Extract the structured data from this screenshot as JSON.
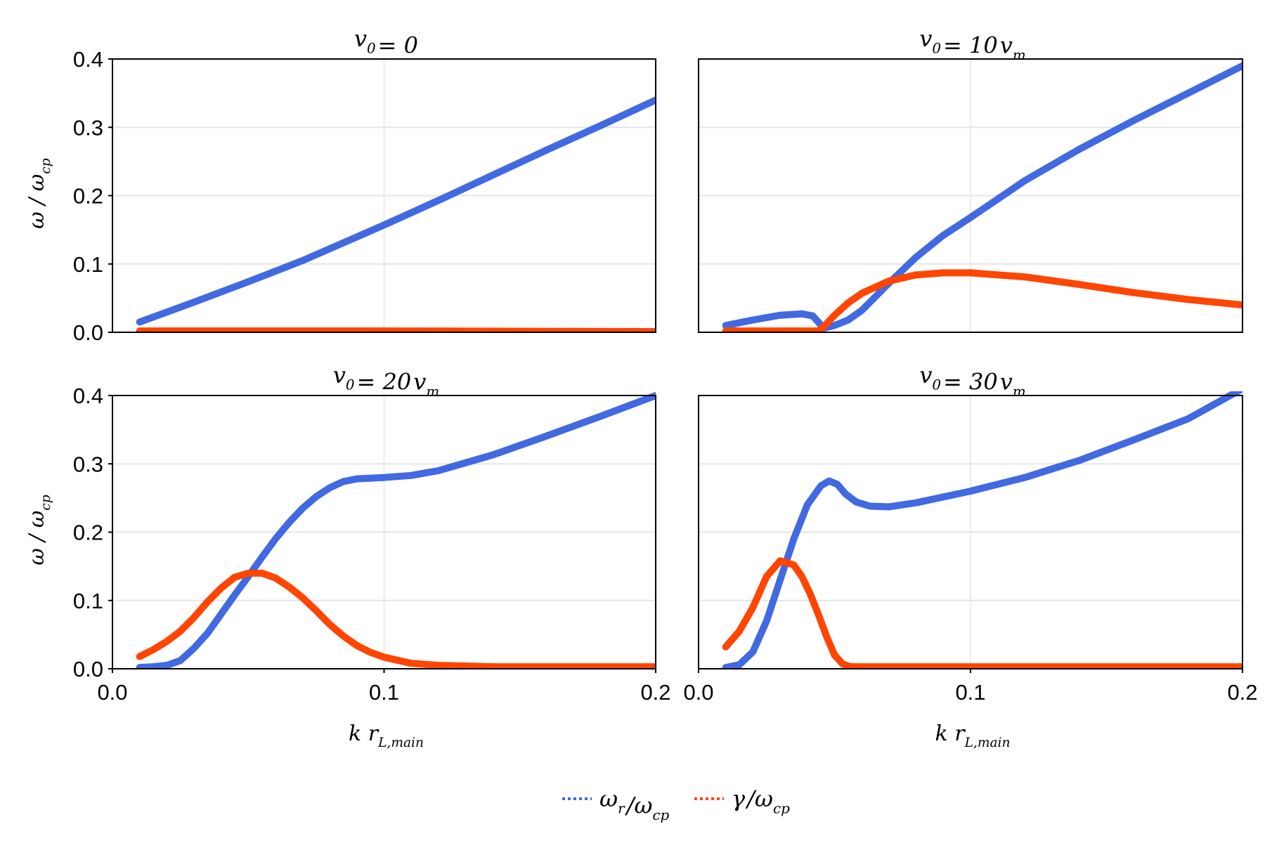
{
  "chart_data": [
    {
      "type": "scatter",
      "title": {
        "var": "v",
        "sub": "0",
        "rest": "= 0",
        "var2": "",
        "sub2": ""
      },
      "xlim": [
        0,
        0.2
      ],
      "ylim": [
        0,
        0.4
      ],
      "xticks": [
        "0.0",
        "0.1",
        "0.2"
      ],
      "yticks": [
        "0.0",
        "0.1",
        "0.2",
        "0.3",
        "0.4"
      ],
      "show_xticks": false,
      "show_yticks": true,
      "grid": true,
      "series": [
        {
          "key": "omega_r",
          "x": [
            0.01,
            0.03,
            0.05,
            0.07,
            0.1,
            0.12,
            0.14,
            0.16,
            0.18,
            0.2
          ],
          "y": [
            0.015,
            0.044,
            0.074,
            0.105,
            0.157,
            0.193,
            0.23,
            0.267,
            0.303,
            0.34
          ]
        },
        {
          "key": "gamma",
          "x": [
            0.01,
            0.1,
            0.2
          ],
          "y": [
            0.002,
            0.002,
            0.001
          ]
        }
      ]
    },
    {
      "type": "scatter",
      "title": {
        "var": "v",
        "sub": "0",
        "rest": "= 10",
        "var2": "v",
        "sub2": "m"
      },
      "xlim": [
        0,
        0.2
      ],
      "ylim": [
        0,
        0.4
      ],
      "xticks": [
        "0.0",
        "0.1",
        "0.2"
      ],
      "yticks": [
        "0.0",
        "0.1",
        "0.2",
        "0.3",
        "0.4"
      ],
      "show_xticks": false,
      "show_yticks": false,
      "grid": true,
      "series": [
        {
          "key": "omega_r",
          "x": [
            0.01,
            0.02,
            0.03,
            0.038,
            0.042,
            0.044,
            0.046,
            0.05,
            0.055,
            0.06,
            0.07,
            0.08,
            0.09,
            0.1,
            0.12,
            0.14,
            0.16,
            0.18,
            0.2
          ],
          "y": [
            0.01,
            0.018,
            0.025,
            0.027,
            0.024,
            0.015,
            0.006,
            0.01,
            0.018,
            0.032,
            0.072,
            0.11,
            0.142,
            0.168,
            0.222,
            0.268,
            0.31,
            0.35,
            0.39
          ]
        },
        {
          "key": "gamma",
          "x": [
            0.01,
            0.03,
            0.044,
            0.046,
            0.05,
            0.055,
            0.06,
            0.07,
            0.08,
            0.09,
            0.1,
            0.12,
            0.14,
            0.16,
            0.18,
            0.2
          ],
          "y": [
            0.002,
            0.002,
            0.002,
            0.008,
            0.025,
            0.043,
            0.057,
            0.075,
            0.084,
            0.087,
            0.087,
            0.081,
            0.07,
            0.058,
            0.048,
            0.04
          ]
        }
      ]
    },
    {
      "type": "scatter",
      "title": {
        "var": "v",
        "sub": "0",
        "rest": "= 20",
        "var2": "v",
        "sub2": "m"
      },
      "xlim": [
        0,
        0.2
      ],
      "ylim": [
        0,
        0.4
      ],
      "xticks": [
        "0.0",
        "0.1",
        "0.2"
      ],
      "yticks": [
        "0.0",
        "0.1",
        "0.2",
        "0.3",
        "0.4"
      ],
      "show_xticks": true,
      "show_yticks": true,
      "grid": true,
      "series": [
        {
          "key": "omega_r",
          "x": [
            0.01,
            0.015,
            0.02,
            0.025,
            0.03,
            0.035,
            0.04,
            0.045,
            0.05,
            0.055,
            0.06,
            0.065,
            0.07,
            0.075,
            0.08,
            0.085,
            0.09,
            0.1,
            0.11,
            0.12,
            0.14,
            0.16,
            0.18,
            0.2
          ],
          "y": [
            0.002,
            0.003,
            0.005,
            0.012,
            0.03,
            0.052,
            0.08,
            0.108,
            0.135,
            0.163,
            0.19,
            0.214,
            0.235,
            0.252,
            0.265,
            0.274,
            0.278,
            0.28,
            0.283,
            0.29,
            0.313,
            0.341,
            0.37,
            0.4
          ]
        },
        {
          "key": "gamma",
          "x": [
            0.01,
            0.015,
            0.02,
            0.025,
            0.03,
            0.035,
            0.04,
            0.045,
            0.05,
            0.055,
            0.06,
            0.065,
            0.07,
            0.075,
            0.08,
            0.085,
            0.09,
            0.095,
            0.1,
            0.11,
            0.12,
            0.14,
            0.2
          ],
          "y": [
            0.018,
            0.028,
            0.04,
            0.055,
            0.075,
            0.098,
            0.118,
            0.134,
            0.14,
            0.14,
            0.133,
            0.12,
            0.104,
            0.085,
            0.065,
            0.048,
            0.034,
            0.024,
            0.017,
            0.008,
            0.005,
            0.003,
            0.003
          ]
        }
      ]
    },
    {
      "type": "scatter",
      "title": {
        "var": "v",
        "sub": "0",
        "rest": "= 30",
        "var2": "v",
        "sub2": "m"
      },
      "xlim": [
        0,
        0.2
      ],
      "ylim": [
        0,
        0.4
      ],
      "xticks": [
        "0.0",
        "0.1",
        "0.2"
      ],
      "yticks": [
        "0.0",
        "0.1",
        "0.2",
        "0.3",
        "0.4"
      ],
      "show_xticks": true,
      "show_yticks": false,
      "grid": true,
      "series": [
        {
          "key": "omega_r",
          "x": [
            0.01,
            0.015,
            0.02,
            0.025,
            0.03,
            0.035,
            0.04,
            0.045,
            0.048,
            0.051,
            0.054,
            0.058,
            0.063,
            0.07,
            0.08,
            0.1,
            0.12,
            0.14,
            0.16,
            0.18,
            0.2
          ],
          "y": [
            0.002,
            0.006,
            0.025,
            0.07,
            0.13,
            0.19,
            0.24,
            0.268,
            0.275,
            0.27,
            0.256,
            0.244,
            0.238,
            0.237,
            0.243,
            0.26,
            0.28,
            0.305,
            0.335,
            0.366,
            0.41
          ]
        },
        {
          "key": "gamma",
          "x": [
            0.01,
            0.015,
            0.02,
            0.025,
            0.03,
            0.035,
            0.038,
            0.041,
            0.044,
            0.047,
            0.05,
            0.053,
            0.056,
            0.06,
            0.2
          ],
          "y": [
            0.032,
            0.055,
            0.09,
            0.135,
            0.158,
            0.152,
            0.135,
            0.11,
            0.08,
            0.048,
            0.02,
            0.007,
            0.003,
            0.003,
            0.003
          ]
        }
      ]
    }
  ],
  "ylabel": {
    "main": "ω / ω",
    "sub": "cp"
  },
  "xlabel": {
    "main": "k r",
    "sub": "L,main"
  },
  "legend": {
    "placement": "bottom-center",
    "items": [
      {
        "key": "omega_r",
        "main": "ω",
        "sub": "r",
        "rest": "/ω",
        "sub2": "cp",
        "color": "#4169e1"
      },
      {
        "key": "gamma",
        "main": "γ",
        "sub": "",
        "rest": "/ω",
        "sub2": "cp",
        "color": "#ff4500"
      }
    ]
  },
  "colors": {
    "omega_r": "#4169e1",
    "gamma": "#ff4500",
    "grid": "#e5e5e5"
  }
}
